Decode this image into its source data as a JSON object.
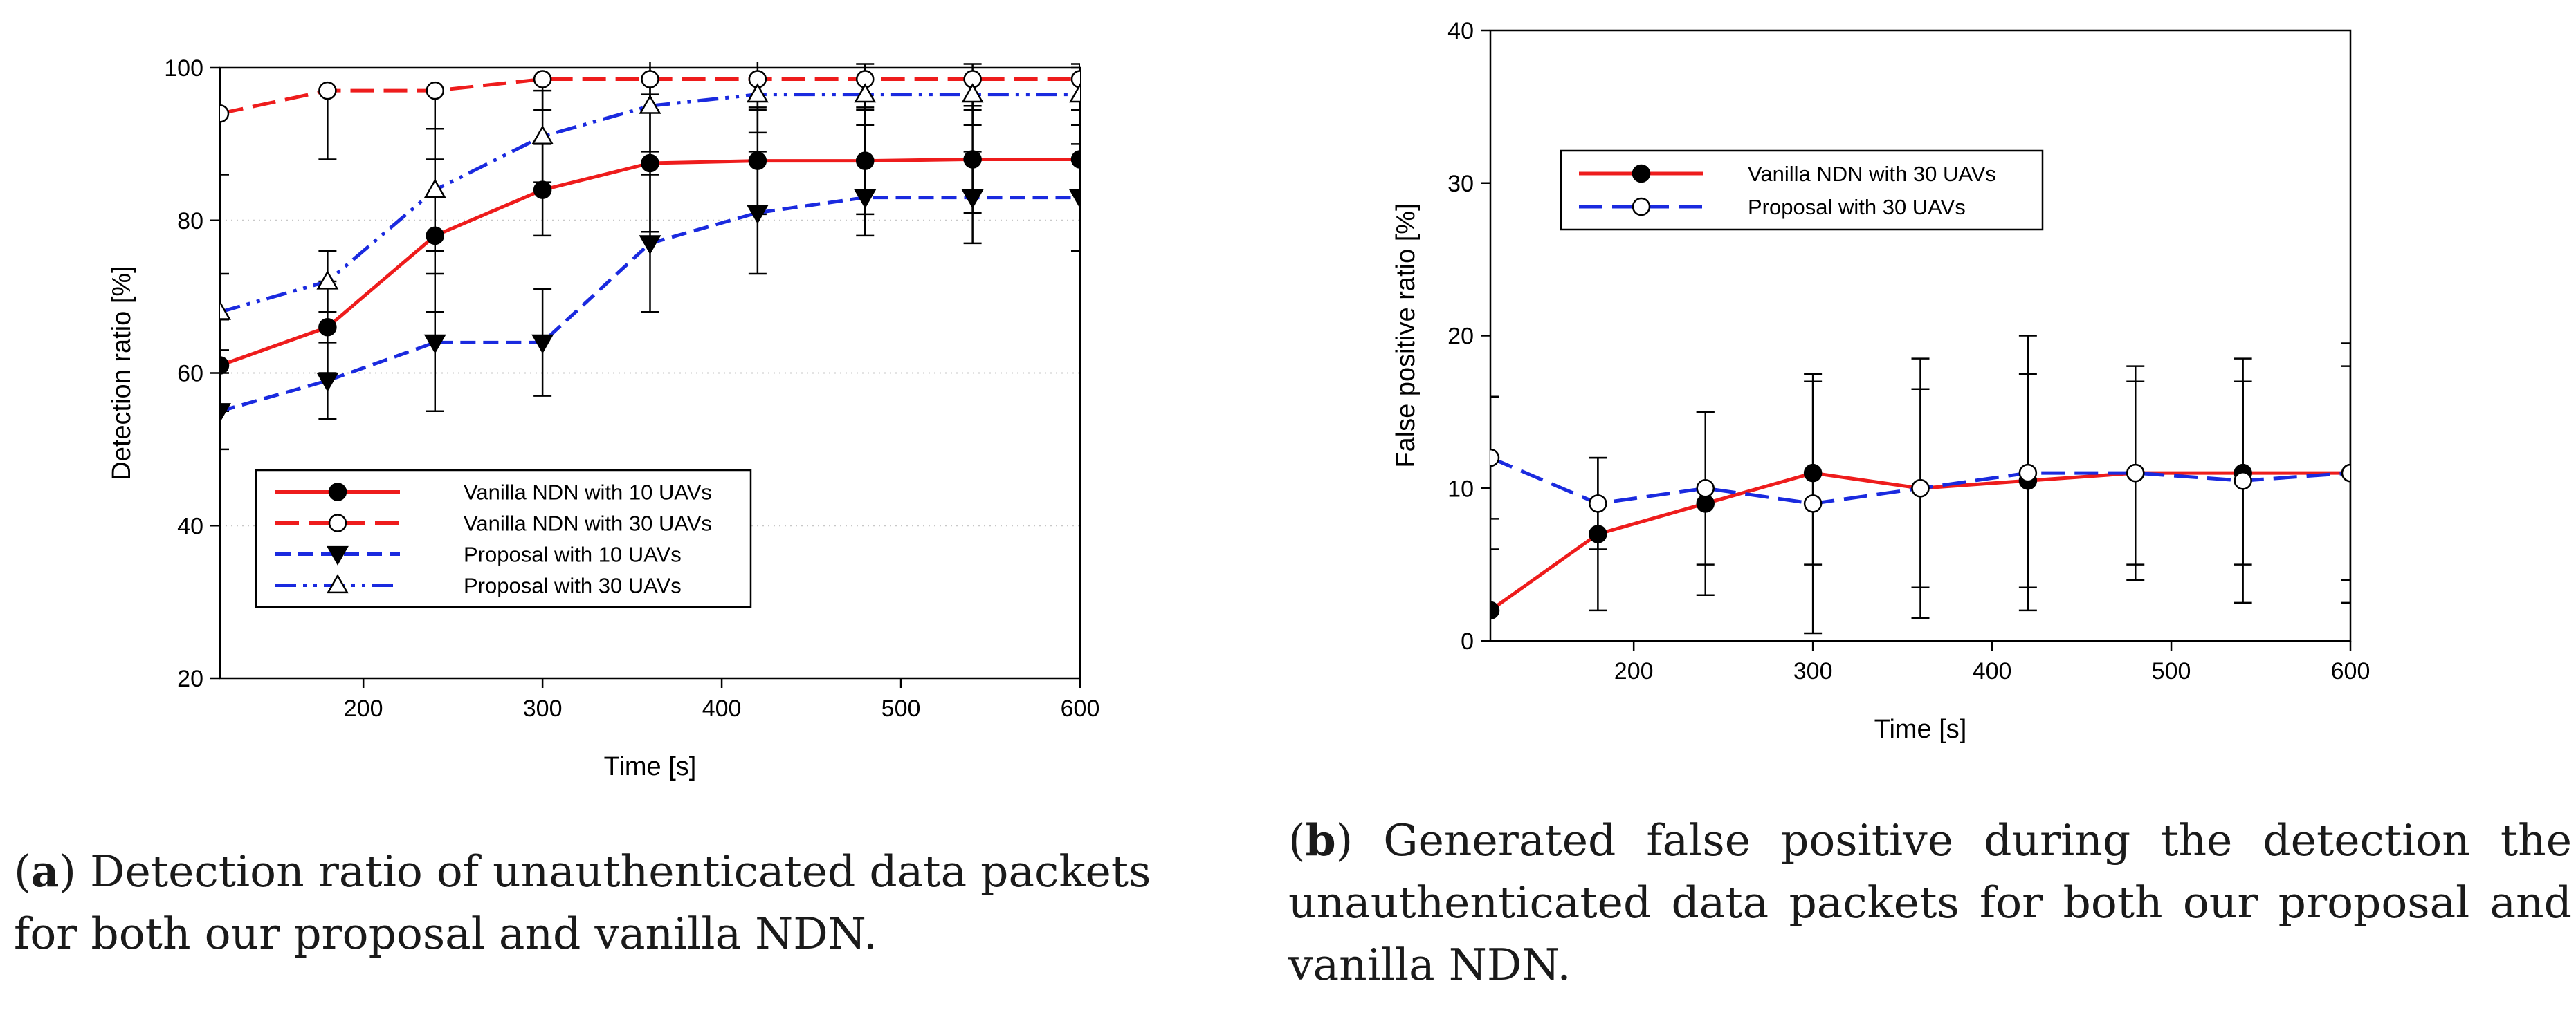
{
  "chart_data": [
    {
      "id": "a",
      "type": "line",
      "title": "",
      "xlabel": "Time [s]",
      "ylabel": "Detection ratio [%]",
      "xlim": [
        120,
        600
      ],
      "ylim": [
        20,
        100
      ],
      "xticks": [
        200,
        300,
        400,
        500,
        600
      ],
      "yticks": [
        20,
        40,
        60,
        80,
        100
      ],
      "grid": "horizontal dotted",
      "legend_position": "lower-center",
      "x": [
        120,
        180,
        240,
        300,
        360,
        420,
        480,
        540,
        600
      ],
      "series": [
        {
          "name": "Vanilla NDN with 10 UAVs",
          "color": "#ee1c1c",
          "dash": "solid",
          "marker": "filled-circle",
          "values": [
            61,
            66,
            78,
            84,
            87.5,
            87.8,
            87.8,
            88,
            88
          ],
          "err_low": [
            6,
            6,
            10,
            6,
            9,
            7,
            7,
            7,
            12
          ],
          "err_high": [
            6,
            6,
            10,
            6,
            9,
            7,
            7,
            7,
            12
          ]
        },
        {
          "name": "Vanilla NDN with 30 UAVs",
          "color": "#ee1c1c",
          "dash": "long-dash",
          "marker": "open-circle",
          "values": [
            94,
            97,
            97,
            98.5,
            98.5,
            98.5,
            98.5,
            98.5,
            98.5
          ],
          "err_low": [
            8,
            9,
            5,
            4,
            4,
            4,
            4,
            4,
            4
          ],
          "err_high": [
            0,
            0,
            0,
            0,
            0,
            0,
            0,
            0,
            0
          ]
        },
        {
          "name": "Proposal with 10 UAVs",
          "color": "#1a2adf",
          "dash": "short-dash",
          "marker": "filled-triangle-down",
          "values": [
            55,
            59,
            64,
            64,
            77,
            81,
            83,
            83,
            83
          ],
          "err_low": [
            5,
            5,
            9,
            7,
            9,
            8,
            5,
            6,
            7
          ],
          "err_high": [
            5,
            5,
            9,
            7,
            9,
            8,
            5,
            6,
            7
          ]
        },
        {
          "name": "Proposal with 30 UAVs",
          "color": "#1a2adf",
          "dash": "dash-dot-dot",
          "marker": "open-triangle-up",
          "values": [
            68,
            72,
            84,
            91,
            95,
            96.5,
            96.5,
            96.5,
            96.5
          ],
          "err_low": [
            5,
            4,
            8,
            6,
            6,
            5,
            4,
            4,
            4
          ],
          "err_high": [
            5,
            4,
            8,
            6,
            6,
            5,
            4,
            4,
            4
          ]
        }
      ]
    },
    {
      "id": "b",
      "type": "line",
      "title": "",
      "xlabel": "Time [s]",
      "ylabel": "False positive ratio [%]",
      "xlim": [
        120,
        600
      ],
      "ylim": [
        0,
        40
      ],
      "xticks": [
        200,
        300,
        400,
        500,
        600
      ],
      "yticks": [
        0,
        10,
        20,
        30,
        40
      ],
      "grid": "off",
      "legend_position": "upper-left",
      "x": [
        120,
        180,
        240,
        300,
        360,
        420,
        480,
        540,
        600
      ],
      "series": [
        {
          "name": "Vanilla NDN with 30 UAVs",
          "color": "#ee1c1c",
          "dash": "solid",
          "marker": "filled-circle",
          "values": [
            2,
            7,
            9,
            11,
            10,
            10.5,
            11,
            11,
            11
          ],
          "err_low": [
            0,
            5,
            6,
            6,
            6.5,
            7,
            6,
            6,
            7
          ],
          "err_high": [
            4,
            5,
            6,
            6,
            6.5,
            7,
            6,
            6,
            7
          ]
        },
        {
          "name": "Proposal with 30 UAVs",
          "color": "#1a2adf",
          "dash": "long-dash",
          "marker": "open-circle",
          "values": [
            12,
            9,
            10,
            9,
            10,
            11,
            11,
            10.5,
            11
          ],
          "err_low": [
            4,
            3,
            5,
            8.5,
            8.5,
            9,
            7,
            8,
            8.5
          ],
          "err_high": [
            4,
            3,
            5,
            8.5,
            8.5,
            9,
            7,
            8,
            8.5
          ]
        }
      ]
    }
  ],
  "captions": {
    "a": {
      "label": "a",
      "text": ") Detection ratio of unauthenticated data packets for both our proposal and vanilla NDN."
    },
    "b": {
      "label": "b",
      "text": ") Generated false positive during the detection the unauthenticated data packets for both our proposal and vanilla NDN."
    }
  }
}
